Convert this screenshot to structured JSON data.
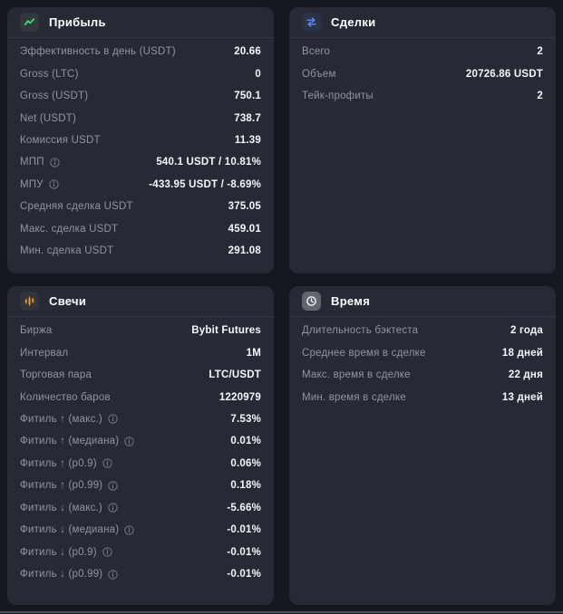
{
  "colors": {
    "page_bg": "#161821",
    "card_bg": "#272a35",
    "divider": "#343844",
    "label_text": "#8f95a3",
    "value_text": "#f5f7fb",
    "profit_accent": "#4ade80",
    "profit_tile": "#303a3e",
    "trades_accent": "#5f8bf5",
    "trades_tile": "#2b3349",
    "candles_accent": "#e9a23b",
    "candles_tile": "#33353d",
    "time_accent": "#ffffff",
    "time_tile": "#62656e",
    "bottom_line": "#4a4f59"
  },
  "cards": [
    {
      "title": "Прибыль",
      "icon": "trend-line-icon",
      "accent": "#4ade80",
      "tile_bg": "#303a3e",
      "rows": [
        {
          "label": "Эффективность в день (USDT)",
          "value": "20.66"
        },
        {
          "label": "Gross (LTC)",
          "value": "0"
        },
        {
          "label": "Gross (USDT)",
          "value": "750.1"
        },
        {
          "label": "Net (USDT)",
          "value": "738.7"
        },
        {
          "label": "Комиссия USDT",
          "value": "11.39"
        },
        {
          "label": "МПП",
          "info": true,
          "value": "540.1 USDT / 10.81%"
        },
        {
          "label": "МПУ",
          "info": true,
          "value": "-433.95 USDT / -8.69%"
        },
        {
          "label": "Средняя сделка USDT",
          "value": "375.05"
        },
        {
          "label": "Макс. сделка USDT",
          "value": "459.01"
        },
        {
          "label": "Мин. сделка USDT",
          "value": "291.08"
        }
      ]
    },
    {
      "title": "Сделки",
      "icon": "swap-arrows-icon",
      "accent": "#5f8bf5",
      "tile_bg": "#2b3349",
      "rows": [
        {
          "label": "Всего",
          "value": "2"
        },
        {
          "label": "Объем",
          "value": "20726.86 USDT"
        },
        {
          "label": "Тейк-профиты",
          "value": "2"
        }
      ]
    },
    {
      "title": "Свечи",
      "icon": "candlestick-icon",
      "accent": "#e9a23b",
      "tile_bg": "#33353d",
      "rows": [
        {
          "label": "Биржа",
          "value": "Bybit Futures"
        },
        {
          "label": "Интервал",
          "value": "1M"
        },
        {
          "label": "Торговая пара",
          "value": "LTC/USDT"
        },
        {
          "label": "Количество баров",
          "value": "1220979"
        },
        {
          "label": "Фитиль ↑ (макс.)",
          "info": true,
          "value": "7.53%"
        },
        {
          "label": "Фитиль ↑ (медиана)",
          "info": true,
          "value": "0.01%"
        },
        {
          "label": "Фитиль ↑ (p0.9)",
          "info": true,
          "value": "0.06%"
        },
        {
          "label": "Фитиль ↑ (p0.99)",
          "info": true,
          "value": "0.18%"
        },
        {
          "label": "Фитиль ↓ (макс.)",
          "info": true,
          "value": "-5.66%"
        },
        {
          "label": "Фитиль ↓ (медиана)",
          "info": true,
          "value": "-0.01%"
        },
        {
          "label": "Фитиль ↓ (p0.9)",
          "info": true,
          "value": "-0.01%"
        },
        {
          "label": "Фитиль ↓ (p0.99)",
          "info": true,
          "value": "-0.01%"
        }
      ]
    },
    {
      "title": "Время",
      "icon": "clock-icon",
      "accent": "#ffffff",
      "tile_bg": "#62656e",
      "rows": [
        {
          "label": "Длительность бэктеста",
          "value": "2 года"
        },
        {
          "label": "Среднее время в сделке",
          "value": "18 дней"
        },
        {
          "label": "Макс. время в сделке",
          "value": "22 дня"
        },
        {
          "label": "Мин. время в сделке",
          "value": "13 дней"
        }
      ]
    }
  ]
}
